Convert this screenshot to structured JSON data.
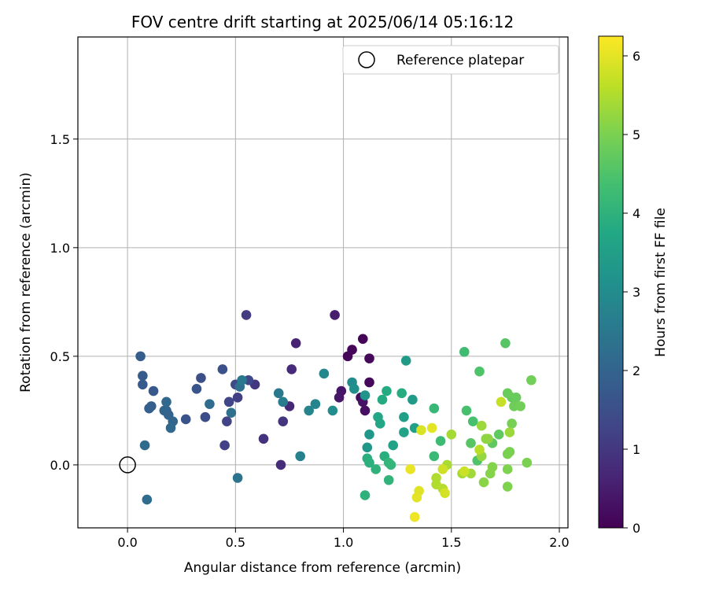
{
  "chart_data": {
    "type": "scatter",
    "title": "FOV centre drift starting at 2025/06/14 05:16:12",
    "xlabel": "Angular distance from reference (arcmin)",
    "ylabel": "Rotation from reference (arcmin)",
    "xlim": [
      -0.23,
      2.04
    ],
    "ylim": [
      -0.29,
      1.97
    ],
    "x_ticks": [
      0.0,
      0.5,
      1.0,
      1.5,
      2.0
    ],
    "y_ticks": [
      0.0,
      0.5,
      1.0,
      1.5
    ],
    "x_tick_labels": [
      "0.0",
      "0.5",
      "1.0",
      "1.5",
      "2.0"
    ],
    "y_tick_labels": [
      "0.0",
      "0.5",
      "1.0",
      "1.5"
    ],
    "grid": true,
    "legend": {
      "position": "top-right",
      "label": "Reference platepar"
    },
    "reference_point": {
      "x": 0.0,
      "y": 0.0
    },
    "colorbar": {
      "label": "Hours from first FF file",
      "min": 0,
      "max": 6.25,
      "ticks": [
        0,
        1,
        2,
        3,
        4,
        5,
        6
      ],
      "tick_labels": [
        "0",
        "1",
        "2",
        "3",
        "4",
        "5",
        "6"
      ],
      "colormap": "viridis"
    },
    "points": [
      {
        "x": 1.09,
        "y": 0.58,
        "c": 0.05
      },
      {
        "x": 1.04,
        "y": 0.53,
        "c": 0.08
      },
      {
        "x": 1.02,
        "y": 0.5,
        "c": 0.1
      },
      {
        "x": 1.12,
        "y": 0.49,
        "c": 0.12
      },
      {
        "x": 1.12,
        "y": 0.38,
        "c": 0.15
      },
      {
        "x": 1.08,
        "y": 0.31,
        "c": 0.2
      },
      {
        "x": 1.1,
        "y": 0.25,
        "c": 0.25
      },
      {
        "x": 1.09,
        "y": 0.29,
        "c": 0.3
      },
      {
        "x": 0.99,
        "y": 0.34,
        "c": 0.35
      },
      {
        "x": 0.98,
        "y": 0.31,
        "c": 0.4
      },
      {
        "x": 0.96,
        "y": 0.69,
        "c": 0.5
      },
      {
        "x": 0.78,
        "y": 0.56,
        "c": 0.6
      },
      {
        "x": 0.75,
        "y": 0.27,
        "c": 0.7
      },
      {
        "x": 0.76,
        "y": 0.44,
        "c": 0.75
      },
      {
        "x": 0.71,
        "y": 0.0,
        "c": 0.8
      },
      {
        "x": 0.63,
        "y": 0.12,
        "c": 0.9
      },
      {
        "x": 0.72,
        "y": 0.2,
        "c": 0.95
      },
      {
        "x": 0.59,
        "y": 0.37,
        "c": 1.0
      },
      {
        "x": 0.55,
        "y": 0.69,
        "c": 1.1
      },
      {
        "x": 0.51,
        "y": 0.31,
        "c": 1.15
      },
      {
        "x": 0.45,
        "y": 0.09,
        "c": 1.2
      },
      {
        "x": 0.46,
        "y": 0.2,
        "c": 1.25
      },
      {
        "x": 0.47,
        "y": 0.29,
        "c": 1.3
      },
      {
        "x": 0.56,
        "y": 0.39,
        "c": 1.35
      },
      {
        "x": 0.5,
        "y": 0.37,
        "c": 1.4
      },
      {
        "x": 0.36,
        "y": 0.22,
        "c": 1.45
      },
      {
        "x": 0.34,
        "y": 0.4,
        "c": 1.5
      },
      {
        "x": 0.44,
        "y": 0.44,
        "c": 1.55
      },
      {
        "x": 0.27,
        "y": 0.21,
        "c": 1.6
      },
      {
        "x": 0.32,
        "y": 0.35,
        "c": 1.65
      },
      {
        "x": 0.12,
        "y": 0.34,
        "c": 1.7
      },
      {
        "x": 0.07,
        "y": 0.37,
        "c": 1.75
      },
      {
        "x": 0.07,
        "y": 0.41,
        "c": 1.8
      },
      {
        "x": 0.06,
        "y": 0.5,
        "c": 1.85
      },
      {
        "x": 0.1,
        "y": 0.26,
        "c": 1.9
      },
      {
        "x": 0.11,
        "y": 0.27,
        "c": 1.9
      },
      {
        "x": 0.18,
        "y": 0.25,
        "c": 1.95
      },
      {
        "x": 0.17,
        "y": 0.25,
        "c": 2.0
      },
      {
        "x": 0.19,
        "y": 0.23,
        "c": 2.0
      },
      {
        "x": 0.21,
        "y": 0.2,
        "c": 2.05
      },
      {
        "x": 0.2,
        "y": 0.17,
        "c": 2.1
      },
      {
        "x": 0.18,
        "y": 0.29,
        "c": 2.1
      },
      {
        "x": 0.08,
        "y": 0.09,
        "c": 2.15
      },
      {
        "x": 0.09,
        "y": -0.16,
        "c": 2.2
      },
      {
        "x": 0.38,
        "y": 0.28,
        "c": 2.2
      },
      {
        "x": 0.48,
        "y": 0.24,
        "c": 2.3
      },
      {
        "x": 0.52,
        "y": 0.36,
        "c": 2.3
      },
      {
        "x": 0.51,
        "y": -0.06,
        "c": 2.4
      },
      {
        "x": 0.53,
        "y": 0.39,
        "c": 2.5
      },
      {
        "x": 0.7,
        "y": 0.33,
        "c": 2.5
      },
      {
        "x": 0.72,
        "y": 0.29,
        "c": 2.6
      },
      {
        "x": 0.8,
        "y": 0.04,
        "c": 2.7
      },
      {
        "x": 0.84,
        "y": 0.25,
        "c": 2.8
      },
      {
        "x": 0.87,
        "y": 0.28,
        "c": 2.8
      },
      {
        "x": 0.91,
        "y": 0.42,
        "c": 2.9
      },
      {
        "x": 0.95,
        "y": 0.25,
        "c": 3.0
      },
      {
        "x": 1.04,
        "y": 0.38,
        "c": 3.0
      },
      {
        "x": 1.05,
        "y": 0.35,
        "c": 3.1
      },
      {
        "x": 1.1,
        "y": 0.32,
        "c": 3.2
      },
      {
        "x": 1.11,
        "y": 0.08,
        "c": 3.3
      },
      {
        "x": 1.12,
        "y": 0.14,
        "c": 3.3
      },
      {
        "x": 1.29,
        "y": 0.48,
        "c": 3.4
      },
      {
        "x": 1.32,
        "y": 0.3,
        "c": 3.4
      },
      {
        "x": 1.28,
        "y": 0.22,
        "c": 3.5
      },
      {
        "x": 1.33,
        "y": 0.17,
        "c": 3.5
      },
      {
        "x": 1.28,
        "y": 0.15,
        "c": 3.6
      },
      {
        "x": 1.23,
        "y": 0.09,
        "c": 3.6
      },
      {
        "x": 1.16,
        "y": 0.22,
        "c": 3.7
      },
      {
        "x": 1.17,
        "y": 0.19,
        "c": 3.7
      },
      {
        "x": 1.18,
        "y": 0.3,
        "c": 3.8
      },
      {
        "x": 1.2,
        "y": 0.34,
        "c": 3.8
      },
      {
        "x": 1.27,
        "y": 0.33,
        "c": 3.85
      },
      {
        "x": 1.19,
        "y": 0.04,
        "c": 3.9
      },
      {
        "x": 1.11,
        "y": 0.03,
        "c": 3.9
      },
      {
        "x": 1.12,
        "y": 0.01,
        "c": 3.95
      },
      {
        "x": 1.15,
        "y": -0.02,
        "c": 4.0
      },
      {
        "x": 1.1,
        "y": -0.14,
        "c": 4.0
      },
      {
        "x": 1.21,
        "y": -0.07,
        "c": 4.05
      },
      {
        "x": 1.21,
        "y": 0.01,
        "c": 4.1
      },
      {
        "x": 1.22,
        "y": 0.0,
        "c": 4.1
      },
      {
        "x": 1.42,
        "y": 0.26,
        "c": 4.15
      },
      {
        "x": 1.42,
        "y": 0.04,
        "c": 4.2
      },
      {
        "x": 1.45,
        "y": 0.11,
        "c": 4.25
      },
      {
        "x": 1.56,
        "y": 0.52,
        "c": 4.3
      },
      {
        "x": 1.57,
        "y": 0.25,
        "c": 4.4
      },
      {
        "x": 1.6,
        "y": 0.2,
        "c": 4.4
      },
      {
        "x": 1.63,
        "y": 0.43,
        "c": 4.5
      },
      {
        "x": 1.62,
        "y": 0.02,
        "c": 4.5
      },
      {
        "x": 1.75,
        "y": 0.56,
        "c": 4.6
      },
      {
        "x": 1.59,
        "y": 0.1,
        "c": 4.6
      },
      {
        "x": 1.69,
        "y": 0.1,
        "c": 4.7
      },
      {
        "x": 1.72,
        "y": 0.14,
        "c": 4.7
      },
      {
        "x": 1.78,
        "y": 0.31,
        "c": 4.75
      },
      {
        "x": 1.76,
        "y": 0.33,
        "c": 4.8
      },
      {
        "x": 1.8,
        "y": 0.31,
        "c": 4.8
      },
      {
        "x": 1.79,
        "y": 0.27,
        "c": 4.85
      },
      {
        "x": 1.82,
        "y": 0.27,
        "c": 4.9
      },
      {
        "x": 1.87,
        "y": 0.39,
        "c": 4.9
      },
      {
        "x": 1.78,
        "y": 0.19,
        "c": 4.95
      },
      {
        "x": 1.76,
        "y": 0.05,
        "c": 5.0
      },
      {
        "x": 1.77,
        "y": 0.06,
        "c": 5.0
      },
      {
        "x": 1.85,
        "y": 0.01,
        "c": 5.0
      },
      {
        "x": 1.76,
        "y": -0.02,
        "c": 5.05
      },
      {
        "x": 1.76,
        "y": -0.1,
        "c": 5.05
      },
      {
        "x": 1.69,
        "y": -0.01,
        "c": 5.1
      },
      {
        "x": 1.68,
        "y": -0.04,
        "c": 5.1
      },
      {
        "x": 1.65,
        "y": -0.08,
        "c": 5.15
      },
      {
        "x": 1.66,
        "y": 0.12,
        "c": 5.2
      },
      {
        "x": 1.67,
        "y": 0.12,
        "c": 5.2
      },
      {
        "x": 1.64,
        "y": 0.04,
        "c": 5.25
      },
      {
        "x": 1.64,
        "y": 0.18,
        "c": 5.3
      },
      {
        "x": 1.77,
        "y": 0.15,
        "c": 5.3
      },
      {
        "x": 1.59,
        "y": -0.04,
        "c": 5.35
      },
      {
        "x": 1.55,
        "y": -0.04,
        "c": 5.4
      },
      {
        "x": 1.5,
        "y": 0.14,
        "c": 5.4
      },
      {
        "x": 1.48,
        "y": 0.0,
        "c": 5.45
      },
      {
        "x": 1.43,
        "y": -0.06,
        "c": 5.5
      },
      {
        "x": 1.43,
        "y": -0.09,
        "c": 5.5
      },
      {
        "x": 1.46,
        "y": -0.11,
        "c": 5.55
      },
      {
        "x": 1.63,
        "y": 0.07,
        "c": 5.6
      },
      {
        "x": 1.73,
        "y": 0.29,
        "c": 5.7
      },
      {
        "x": 1.56,
        "y": -0.03,
        "c": 5.75
      },
      {
        "x": 1.46,
        "y": -0.02,
        "c": 5.8
      },
      {
        "x": 1.47,
        "y": -0.13,
        "c": 5.85
      },
      {
        "x": 1.36,
        "y": 0.16,
        "c": 5.9
      },
      {
        "x": 1.35,
        "y": -0.12,
        "c": 5.95
      },
      {
        "x": 1.34,
        "y": -0.15,
        "c": 6.0
      },
      {
        "x": 1.41,
        "y": 0.17,
        "c": 6.0
      },
      {
        "x": 1.31,
        "y": -0.02,
        "c": 6.05
      },
      {
        "x": 1.33,
        "y": -0.24,
        "c": 6.1
      }
    ]
  }
}
